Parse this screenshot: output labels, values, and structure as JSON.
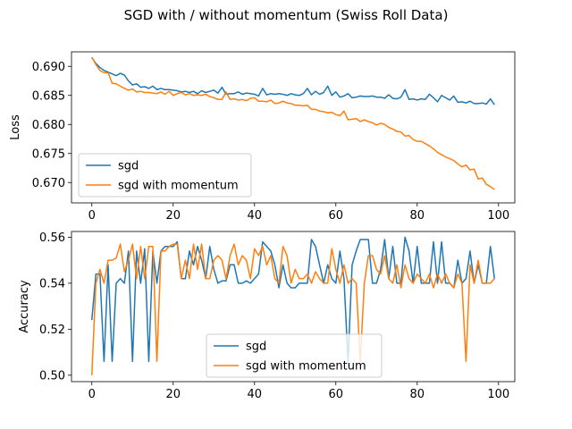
{
  "figure": {
    "suptitle": "SGD with / without momentum (Swiss Roll Data)"
  },
  "chart_data": [
    {
      "type": "line",
      "title": "",
      "xlabel": "",
      "ylabel": "Loss",
      "xlim": [
        -5,
        104
      ],
      "ylim": [
        0.6665,
        0.6925
      ],
      "xticks": [
        0,
        20,
        40,
        60,
        80,
        100
      ],
      "yticks": [
        0.67,
        0.675,
        0.68,
        0.685,
        0.69
      ],
      "ytick_labels": [
        "0.670",
        "0.675",
        "0.680",
        "0.685",
        "0.690"
      ],
      "grid": false,
      "legend_position": "lower-left",
      "series": [
        {
          "name": "sgd",
          "color": "#1f77b4",
          "values": [
            0.6915,
            0.6905,
            0.6898,
            0.6893,
            0.689,
            0.6887,
            0.6884,
            0.6888,
            0.6885,
            0.6875,
            0.6868,
            0.687,
            0.6864,
            0.6865,
            0.6862,
            0.6866,
            0.686,
            0.6862,
            0.686,
            0.686,
            0.6859,
            0.6858,
            0.6856,
            0.6857,
            0.6855,
            0.6857,
            0.6853,
            0.6858,
            0.6855,
            0.6857,
            0.6859,
            0.6854,
            0.6864,
            0.6852,
            0.6853,
            0.6853,
            0.6856,
            0.6852,
            0.6854,
            0.6853,
            0.6852,
            0.6849,
            0.6862,
            0.6851,
            0.6853,
            0.6852,
            0.6853,
            0.6852,
            0.685,
            0.6853,
            0.6851,
            0.685,
            0.6853,
            0.6862,
            0.6851,
            0.6857,
            0.6852,
            0.6855,
            0.6866,
            0.685,
            0.6856,
            0.6847,
            0.6849,
            0.6853,
            0.6846,
            0.6847,
            0.6849,
            0.6848,
            0.6848,
            0.6849,
            0.6847,
            0.6847,
            0.6845,
            0.6851,
            0.6845,
            0.6844,
            0.6847,
            0.686,
            0.6843,
            0.6844,
            0.6842,
            0.6844,
            0.6843,
            0.6852,
            0.6846,
            0.6839,
            0.685,
            0.6846,
            0.6842,
            0.6849,
            0.6838,
            0.6839,
            0.6837,
            0.684,
            0.6836,
            0.6836,
            0.6837,
            0.6835,
            0.6844,
            0.6834
          ]
        },
        {
          "name": "sgd with momentum",
          "color": "#ff7f0e",
          "values": [
            0.6916,
            0.6903,
            0.6893,
            0.6889,
            0.6889,
            0.6871,
            0.687,
            0.6866,
            0.6862,
            0.6859,
            0.6861,
            0.6856,
            0.6857,
            0.6855,
            0.6855,
            0.6854,
            0.6853,
            0.6856,
            0.6852,
            0.6857,
            0.685,
            0.6853,
            0.6855,
            0.6851,
            0.6853,
            0.685,
            0.6851,
            0.685,
            0.6852,
            0.6848,
            0.6846,
            0.6843,
            0.6843,
            0.6856,
            0.6843,
            0.6844,
            0.6842,
            0.6843,
            0.6841,
            0.6845,
            0.6846,
            0.684,
            0.684,
            0.6839,
            0.6842,
            0.6836,
            0.6837,
            0.684,
            0.6837,
            0.6836,
            0.6833,
            0.6833,
            0.6832,
            0.6833,
            0.6826,
            0.6826,
            0.6823,
            0.6822,
            0.682,
            0.6821,
            0.6817,
            0.6815,
            0.6823,
            0.6808,
            0.6809,
            0.681,
            0.6805,
            0.6808,
            0.6805,
            0.6803,
            0.6799,
            0.6802,
            0.68,
            0.6795,
            0.6792,
            0.6788,
            0.6787,
            0.678,
            0.6781,
            0.6774,
            0.6771,
            0.6771,
            0.6767,
            0.6763,
            0.6758,
            0.6752,
            0.6748,
            0.6744,
            0.6741,
            0.6738,
            0.6732,
            0.6727,
            0.673,
            0.6722,
            0.6723,
            0.6706,
            0.6708,
            0.6697,
            0.6693,
            0.6688
          ]
        }
      ]
    },
    {
      "type": "line",
      "title": "",
      "xlabel": "",
      "ylabel": "Accuracy",
      "xlim": [
        -5,
        104
      ],
      "ylim": [
        0.4972,
        0.5625
      ],
      "xticks": [
        0,
        20,
        40,
        60,
        80,
        100
      ],
      "yticks": [
        0.5,
        0.52,
        0.54,
        0.56
      ],
      "ytick_labels": [
        "0.50",
        "0.52",
        "0.54",
        "0.56"
      ],
      "grid": false,
      "legend_position": "lower-center",
      "series": [
        {
          "name": "sgd",
          "color": "#1f77b4",
          "values": [
            0.524,
            0.544,
            0.544,
            0.506,
            0.548,
            0.506,
            0.54,
            0.542,
            0.54,
            0.554,
            0.506,
            0.554,
            0.54,
            0.555,
            0.506,
            0.554,
            0.54,
            0.554,
            0.556,
            0.556,
            0.556,
            0.558,
            0.542,
            0.542,
            0.554,
            0.548,
            0.556,
            0.55,
            0.542,
            0.556,
            0.546,
            0.54,
            0.541,
            0.541,
            0.548,
            0.548,
            0.54,
            0.54,
            0.541,
            0.54,
            0.542,
            0.544,
            0.558,
            0.556,
            0.554,
            0.548,
            0.538,
            0.548,
            0.54,
            0.538,
            0.538,
            0.54,
            0.54,
            0.54,
            0.559,
            0.556,
            0.548,
            0.54,
            0.548,
            0.542,
            0.54,
            0.554,
            0.542,
            0.506,
            0.548,
            0.554,
            0.559,
            0.559,
            0.559,
            0.54,
            0.54,
            0.546,
            0.559,
            0.542,
            0.556,
            0.54,
            0.54,
            0.56,
            0.554,
            0.54,
            0.556,
            0.54,
            0.54,
            0.54,
            0.558,
            0.54,
            0.558,
            0.54,
            0.54,
            0.538,
            0.55,
            0.54,
            0.542,
            0.554,
            0.54,
            0.548,
            0.54,
            0.54,
            0.556,
            0.542
          ]
        },
        {
          "name": "sgd with momentum",
          "color": "#ff7f0e",
          "values": [
            0.5,
            0.54,
            0.546,
            0.54,
            0.55,
            0.55,
            0.551,
            0.557,
            0.545,
            0.55,
            0.557,
            0.542,
            0.556,
            0.542,
            0.556,
            0.556,
            0.506,
            0.554,
            0.554,
            0.556,
            0.557,
            0.557,
            0.542,
            0.55,
            0.542,
            0.557,
            0.546,
            0.557,
            0.542,
            0.542,
            0.55,
            0.552,
            0.55,
            0.542,
            0.552,
            0.557,
            0.548,
            0.552,
            0.55,
            0.542,
            0.555,
            0.552,
            0.556,
            0.548,
            0.552,
            0.542,
            0.54,
            0.556,
            0.552,
            0.54,
            0.546,
            0.542,
            0.542,
            0.544,
            0.54,
            0.545,
            0.542,
            0.54,
            0.54,
            0.555,
            0.546,
            0.54,
            0.548,
            0.54,
            0.542,
            0.54,
            0.506,
            0.54,
            0.552,
            0.552,
            0.546,
            0.544,
            0.552,
            0.542,
            0.54,
            0.548,
            0.538,
            0.548,
            0.542,
            0.54,
            0.544,
            0.542,
            0.54,
            0.544,
            0.538,
            0.544,
            0.54,
            0.544,
            0.54,
            0.538,
            0.544,
            0.54,
            0.506,
            0.548,
            0.54,
            0.55,
            0.54,
            0.54,
            0.54,
            0.542
          ]
        }
      ]
    }
  ]
}
